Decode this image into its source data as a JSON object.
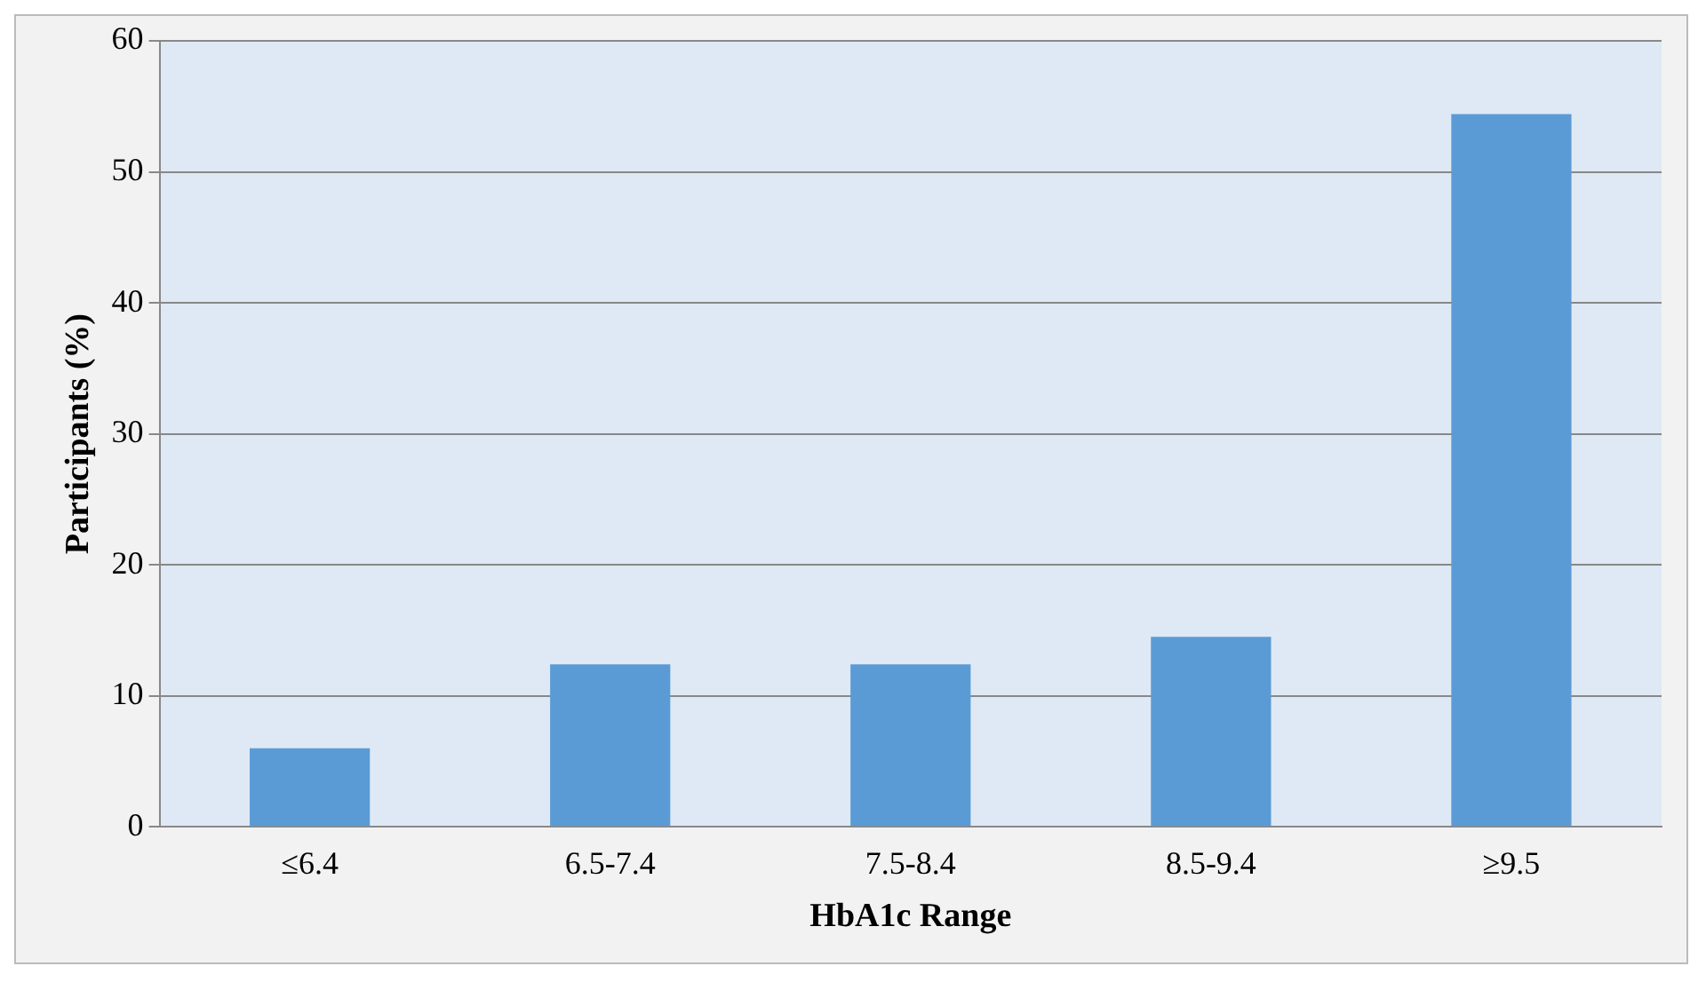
{
  "chart_data": {
    "type": "bar",
    "xlabel": "HbA1c Range",
    "ylabel": "Participants (%)",
    "categories": [
      "≤6.4",
      "6.5-7.4",
      "7.5-8.4",
      "8.5-9.4",
      "≥9.5"
    ],
    "values": [
      6.0,
      12.4,
      12.4,
      14.5,
      54.4
    ],
    "color": "#5b9bd5",
    "ylim": [
      0,
      60
    ],
    "yticks": [
      0,
      10,
      20,
      30,
      40,
      50,
      60
    ],
    "grid": "y",
    "legend": false
  }
}
